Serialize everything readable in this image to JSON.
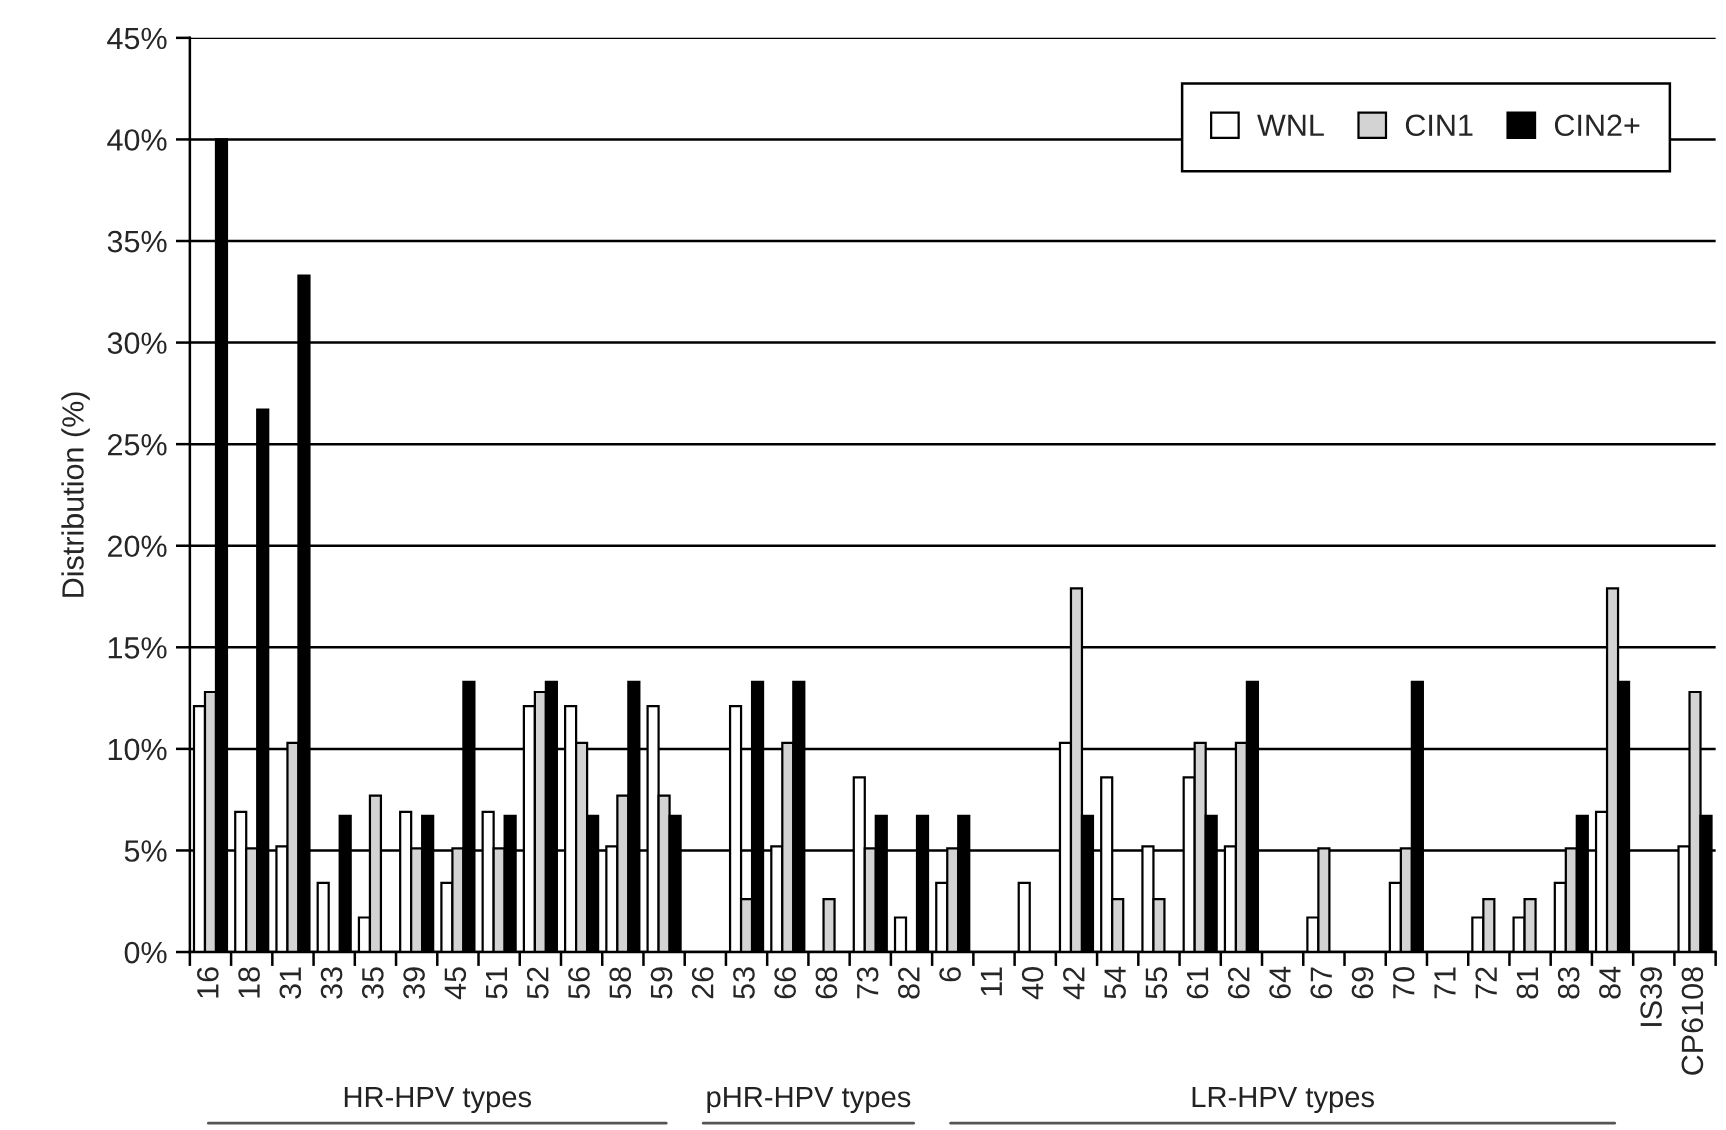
{
  "chart_data": {
    "type": "bar",
    "ylabel": "Distribution (%)",
    "categories": [
      "16",
      "18",
      "31",
      "33",
      "35",
      "39",
      "45",
      "51",
      "52",
      "56",
      "58",
      "59",
      "26",
      "53",
      "66",
      "68",
      "73",
      "82",
      "6",
      "11",
      "40",
      "42",
      "54",
      "55",
      "61",
      "62",
      "64",
      "67",
      "69",
      "70",
      "71",
      "72",
      "81",
      "83",
      "84",
      "IS39",
      "CP6108"
    ],
    "series": [
      {
        "name": "WNL",
        "color": "#ffffff",
        "values": [
          12.1,
          6.9,
          5.2,
          3.4,
          1.7,
          6.9,
          3.4,
          6.9,
          12.1,
          12.1,
          5.2,
          12.1,
          0,
          12.1,
          5.2,
          0,
          8.6,
          1.7,
          3.4,
          0,
          3.4,
          10.3,
          8.6,
          5.2,
          8.6,
          5.2,
          0,
          1.7,
          0,
          3.4,
          0,
          1.7,
          1.7,
          3.4,
          6.9,
          0,
          5.2
        ]
      },
      {
        "name": "CIN1",
        "color": "#d3d3d3",
        "values": [
          12.8,
          5.1,
          10.3,
          0,
          7.7,
          5.1,
          5.1,
          5.1,
          12.8,
          10.3,
          7.7,
          7.7,
          0,
          2.6,
          10.3,
          2.6,
          5.1,
          0,
          5.1,
          0,
          0,
          17.9,
          2.6,
          2.6,
          10.3,
          10.3,
          0,
          5.1,
          0,
          5.1,
          0,
          2.6,
          2.6,
          5.1,
          17.9,
          0,
          12.8
        ]
      },
      {
        "name": "CIN2+",
        "color": "#000000",
        "values": [
          40,
          26.7,
          33.3,
          6.7,
          0,
          6.7,
          13.3,
          6.7,
          13.3,
          6.7,
          13.3,
          6.7,
          0,
          13.3,
          13.3,
          0,
          6.7,
          6.7,
          6.7,
          0,
          0,
          6.7,
          0,
          0,
          6.7,
          13.3,
          0,
          0,
          0,
          13.3,
          0,
          0,
          0,
          6.7,
          13.3,
          0,
          6.7
        ]
      }
    ],
    "ylim": [
      0,
      45
    ],
    "yticks": [
      {
        "value": 0,
        "label": "0%"
      },
      {
        "value": 5,
        "label": "5%"
      },
      {
        "value": 10,
        "label": "10%"
      },
      {
        "value": 15,
        "label": "15%"
      },
      {
        "value": 20,
        "label": "20%"
      },
      {
        "value": 25,
        "label": "25%"
      },
      {
        "value": 30,
        "label": "30%"
      },
      {
        "value": 35,
        "label": "35%"
      },
      {
        "value": 40,
        "label": "40%"
      },
      {
        "value": 45,
        "label": "45%"
      }
    ],
    "grid": "y",
    "legend": "top right",
    "annotations": [
      "HR-HPV types",
      "pHR-HPV types",
      "LR-HPV types"
    ]
  }
}
